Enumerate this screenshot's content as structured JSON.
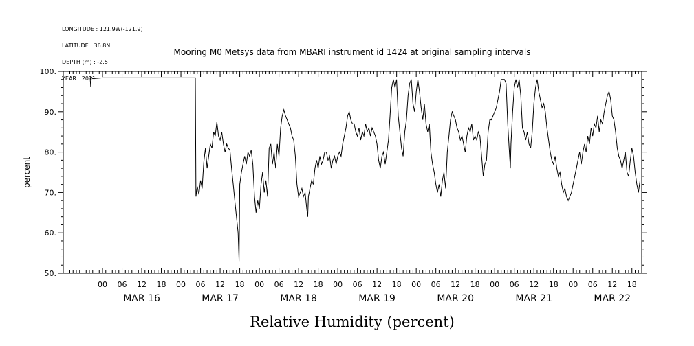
{
  "header": {
    "lines": [
      "LONGITUDE : 121.9W(-121.9)",
      "LATITUDE : 36.8N",
      "DEPTH (m) : -2.5",
      "YEAR : 2011"
    ]
  },
  "chart_data": {
    "type": "line",
    "title": "Mooring M0 Metsys data from MBARI instrument id 1424 at original sampling intervals",
    "xlabel": "Relative Humidity (percent)",
    "ylabel": "percent",
    "ylim": [
      50,
      100
    ],
    "yticks": [
      50,
      60,
      70,
      80,
      90,
      100
    ],
    "ytick_labels": [
      "50.",
      "60.",
      "70.",
      "80.",
      "90.",
      "100."
    ],
    "x_units": "hours since MAR 16 00:00",
    "xlim": [
      -12,
      165
    ],
    "xtick_labels": [
      "00",
      "06",
      "12",
      "18",
      "00",
      "06",
      "12",
      "18",
      "00",
      "06",
      "12",
      "18",
      "00",
      "06",
      "12",
      "18",
      "00",
      "06",
      "12",
      "18",
      "00",
      "06",
      "12",
      "18",
      "00",
      "06",
      "12",
      "18"
    ],
    "day_labels": [
      "MAR 16",
      "MAR 17",
      "MAR 18",
      "MAR 19",
      "MAR 20",
      "MAR 21",
      "MAR 22"
    ],
    "grid": false,
    "series": [
      {
        "points": [
          [
            -3.8,
            98.5
          ],
          [
            -3.6,
            96.2
          ],
          [
            -3.4,
            98.6
          ],
          [
            -3.0,
            98.2
          ],
          [
            0,
            98.4
          ],
          [
            10,
            98.4
          ],
          [
            20,
            98.4
          ],
          [
            28.4,
            98.4
          ],
          [
            28.6,
            69
          ],
          [
            29,
            71.5
          ],
          [
            29.5,
            69.5
          ],
          [
            30,
            73
          ],
          [
            30.5,
            71
          ],
          [
            31,
            77.5
          ],
          [
            31.5,
            81
          ],
          [
            32,
            76
          ],
          [
            32.5,
            79
          ],
          [
            33,
            82
          ],
          [
            33.5,
            81
          ],
          [
            34,
            85
          ],
          [
            34.5,
            84
          ],
          [
            35,
            87.5
          ],
          [
            35.5,
            84
          ],
          [
            36,
            83
          ],
          [
            36.5,
            85
          ],
          [
            37,
            82
          ],
          [
            37.5,
            80
          ],
          [
            38,
            82
          ],
          [
            38.5,
            81
          ],
          [
            39,
            80.5
          ],
          [
            39.5,
            76
          ],
          [
            40,
            72
          ],
          [
            40.5,
            68
          ],
          [
            41,
            64
          ],
          [
            41.5,
            60
          ],
          [
            41.8,
            53
          ],
          [
            42,
            72
          ],
          [
            42.5,
            75
          ],
          [
            43,
            77
          ],
          [
            43.5,
            79
          ],
          [
            44,
            77
          ],
          [
            44.5,
            80
          ],
          [
            45,
            79
          ],
          [
            45.5,
            80.5
          ],
          [
            46,
            77
          ],
          [
            46.5,
            69
          ],
          [
            47,
            65
          ],
          [
            47.5,
            68
          ],
          [
            48,
            66
          ],
          [
            48.5,
            72
          ],
          [
            49,
            75
          ],
          [
            49.5,
            70
          ],
          [
            50,
            73
          ],
          [
            50.5,
            69
          ],
          [
            51,
            81
          ],
          [
            51.5,
            82
          ],
          [
            52,
            77
          ],
          [
            52.5,
            80
          ],
          [
            53,
            76
          ],
          [
            53.5,
            82
          ],
          [
            54,
            79
          ],
          [
            54.5,
            86
          ],
          [
            55,
            89
          ],
          [
            55.5,
            90.5
          ],
          [
            56,
            89
          ],
          [
            56.5,
            88
          ],
          [
            57,
            87
          ],
          [
            57.5,
            86
          ],
          [
            58,
            84
          ],
          [
            58.5,
            83
          ],
          [
            59,
            79
          ],
          [
            59.5,
            72
          ],
          [
            60,
            69
          ],
          [
            60.5,
            70
          ],
          [
            61,
            71
          ],
          [
            61.5,
            69
          ],
          [
            62,
            70
          ],
          [
            62.5,
            66
          ],
          [
            62.8,
            64
          ],
          [
            63,
            69
          ],
          [
            63.5,
            71
          ],
          [
            64,
            73
          ],
          [
            64.5,
            72
          ],
          [
            65,
            76
          ],
          [
            65.5,
            78
          ],
          [
            66,
            76
          ],
          [
            66.5,
            79
          ],
          [
            67,
            77
          ],
          [
            67.5,
            78
          ],
          [
            68,
            80
          ],
          [
            68.5,
            80
          ],
          [
            69,
            78
          ],
          [
            69.5,
            79
          ],
          [
            70,
            76
          ],
          [
            70.5,
            78
          ],
          [
            71,
            79
          ],
          [
            71.5,
            77
          ],
          [
            72,
            79
          ],
          [
            72.5,
            80
          ],
          [
            73,
            79
          ],
          [
            73.5,
            82
          ],
          [
            74,
            84
          ],
          [
            74.5,
            86
          ],
          [
            75,
            89
          ],
          [
            75.5,
            90
          ],
          [
            76,
            88
          ],
          [
            76.5,
            87
          ],
          [
            77,
            87
          ],
          [
            77.5,
            85
          ],
          [
            78,
            84
          ],
          [
            78.5,
            86
          ],
          [
            79,
            83
          ],
          [
            79.5,
            85
          ],
          [
            80,
            84
          ],
          [
            80.5,
            87
          ],
          [
            81,
            85
          ],
          [
            81.5,
            86
          ],
          [
            82,
            84
          ],
          [
            82.5,
            86
          ],
          [
            83,
            85
          ],
          [
            83.5,
            84
          ],
          [
            84,
            82
          ],
          [
            84.5,
            78
          ],
          [
            85,
            76
          ],
          [
            85.5,
            79
          ],
          [
            86,
            80
          ],
          [
            86.5,
            77
          ],
          [
            87,
            80
          ],
          [
            87.5,
            83
          ],
          [
            88,
            89
          ],
          [
            88.5,
            96
          ],
          [
            89,
            98
          ],
          [
            89.5,
            96
          ],
          [
            90,
            98
          ],
          [
            90.5,
            89
          ],
          [
            91,
            85
          ],
          [
            91.5,
            81
          ],
          [
            92,
            79
          ],
          [
            92.5,
            85
          ],
          [
            93,
            88
          ],
          [
            93.5,
            94
          ],
          [
            94,
            97
          ],
          [
            94.5,
            98
          ],
          [
            95,
            92
          ],
          [
            95.5,
            90
          ],
          [
            96,
            95
          ],
          [
            96.5,
            98
          ],
          [
            97,
            95
          ],
          [
            97.5,
            91
          ],
          [
            98,
            88
          ],
          [
            98.5,
            92
          ],
          [
            99,
            87
          ],
          [
            99.5,
            85
          ],
          [
            100,
            87
          ],
          [
            100.5,
            80
          ],
          [
            101,
            77
          ],
          [
            101.5,
            75
          ],
          [
            102,
            72
          ],
          [
            102.5,
            70
          ],
          [
            103,
            72
          ],
          [
            103.5,
            69
          ],
          [
            104,
            73
          ],
          [
            104.5,
            75
          ],
          [
            105,
            71
          ],
          [
            105.5,
            80
          ],
          [
            106,
            84
          ],
          [
            106.5,
            88
          ],
          [
            107,
            90
          ],
          [
            107.5,
            89
          ],
          [
            108,
            88
          ],
          [
            108.5,
            86
          ],
          [
            109,
            85
          ],
          [
            109.5,
            83
          ],
          [
            110,
            84
          ],
          [
            110.5,
            82
          ],
          [
            111,
            80
          ],
          [
            111.5,
            84
          ],
          [
            112,
            86
          ],
          [
            112.5,
            85
          ],
          [
            113,
            87
          ],
          [
            113.5,
            83
          ],
          [
            114,
            84
          ],
          [
            114.5,
            83
          ],
          [
            115,
            85
          ],
          [
            115.5,
            84
          ],
          [
            116,
            79
          ],
          [
            116.5,
            74
          ],
          [
            117,
            77
          ],
          [
            117.5,
            78
          ],
          [
            118,
            85
          ],
          [
            118.5,
            88
          ],
          [
            119,
            88
          ],
          [
            119.5,
            89
          ],
          [
            120,
            90
          ],
          [
            120.5,
            91
          ],
          [
            121,
            93
          ],
          [
            121.5,
            95
          ],
          [
            122,
            98
          ],
          [
            122.5,
            98
          ],
          [
            123,
            98
          ],
          [
            123.5,
            97
          ],
          [
            124,
            87
          ],
          [
            124.5,
            80
          ],
          [
            124.8,
            76
          ],
          [
            125,
            82
          ],
          [
            125.5,
            90
          ],
          [
            126,
            96
          ],
          [
            126.5,
            98
          ],
          [
            127,
            96
          ],
          [
            127.5,
            98
          ],
          [
            128,
            94
          ],
          [
            128.5,
            86
          ],
          [
            129,
            85
          ],
          [
            129.5,
            83
          ],
          [
            130,
            85
          ],
          [
            130.5,
            82
          ],
          [
            131,
            81
          ],
          [
            131.5,
            85
          ],
          [
            132,
            92
          ],
          [
            132.5,
            96
          ],
          [
            133,
            98
          ],
          [
            133.5,
            95
          ],
          [
            134,
            93
          ],
          [
            134.5,
            91
          ],
          [
            135,
            92
          ],
          [
            135.5,
            90
          ],
          [
            136,
            86
          ],
          [
            136.5,
            83
          ],
          [
            137,
            80
          ],
          [
            137.5,
            78
          ],
          [
            138,
            77
          ],
          [
            138.5,
            79
          ],
          [
            139,
            76
          ],
          [
            139.5,
            74
          ],
          [
            140,
            75
          ],
          [
            140.5,
            72
          ],
          [
            141,
            70
          ],
          [
            141.5,
            71
          ],
          [
            142,
            69
          ],
          [
            142.5,
            68
          ],
          [
            143,
            69
          ],
          [
            143.5,
            70
          ],
          [
            144,
            72
          ],
          [
            144.5,
            74
          ],
          [
            145,
            76
          ],
          [
            145.5,
            78
          ],
          [
            146,
            80
          ],
          [
            146.5,
            77
          ],
          [
            147,
            80
          ],
          [
            147.5,
            82
          ],
          [
            148,
            80
          ],
          [
            148.5,
            84
          ],
          [
            149,
            82
          ],
          [
            149.5,
            86
          ],
          [
            150,
            84
          ],
          [
            150.5,
            87
          ],
          [
            151,
            86
          ],
          [
            151.5,
            89
          ],
          [
            152,
            85
          ],
          [
            152.5,
            88
          ],
          [
            153,
            87
          ],
          [
            153.5,
            90
          ],
          [
            154,
            92
          ],
          [
            154.5,
            94
          ],
          [
            155,
            95
          ],
          [
            155.5,
            93
          ],
          [
            156,
            89
          ],
          [
            156.5,
            88
          ],
          [
            157,
            85
          ],
          [
            157.5,
            81
          ],
          [
            158,
            79
          ],
          [
            158.5,
            78
          ],
          [
            159,
            76
          ],
          [
            159.5,
            78
          ],
          [
            160,
            80
          ],
          [
            160.5,
            75
          ],
          [
            161,
            74
          ],
          [
            161.5,
            78
          ],
          [
            162,
            81
          ],
          [
            162.5,
            79
          ],
          [
            163,
            75
          ],
          [
            163.5,
            72
          ],
          [
            164,
            70
          ],
          [
            164.5,
            73
          ]
        ]
      }
    ]
  }
}
